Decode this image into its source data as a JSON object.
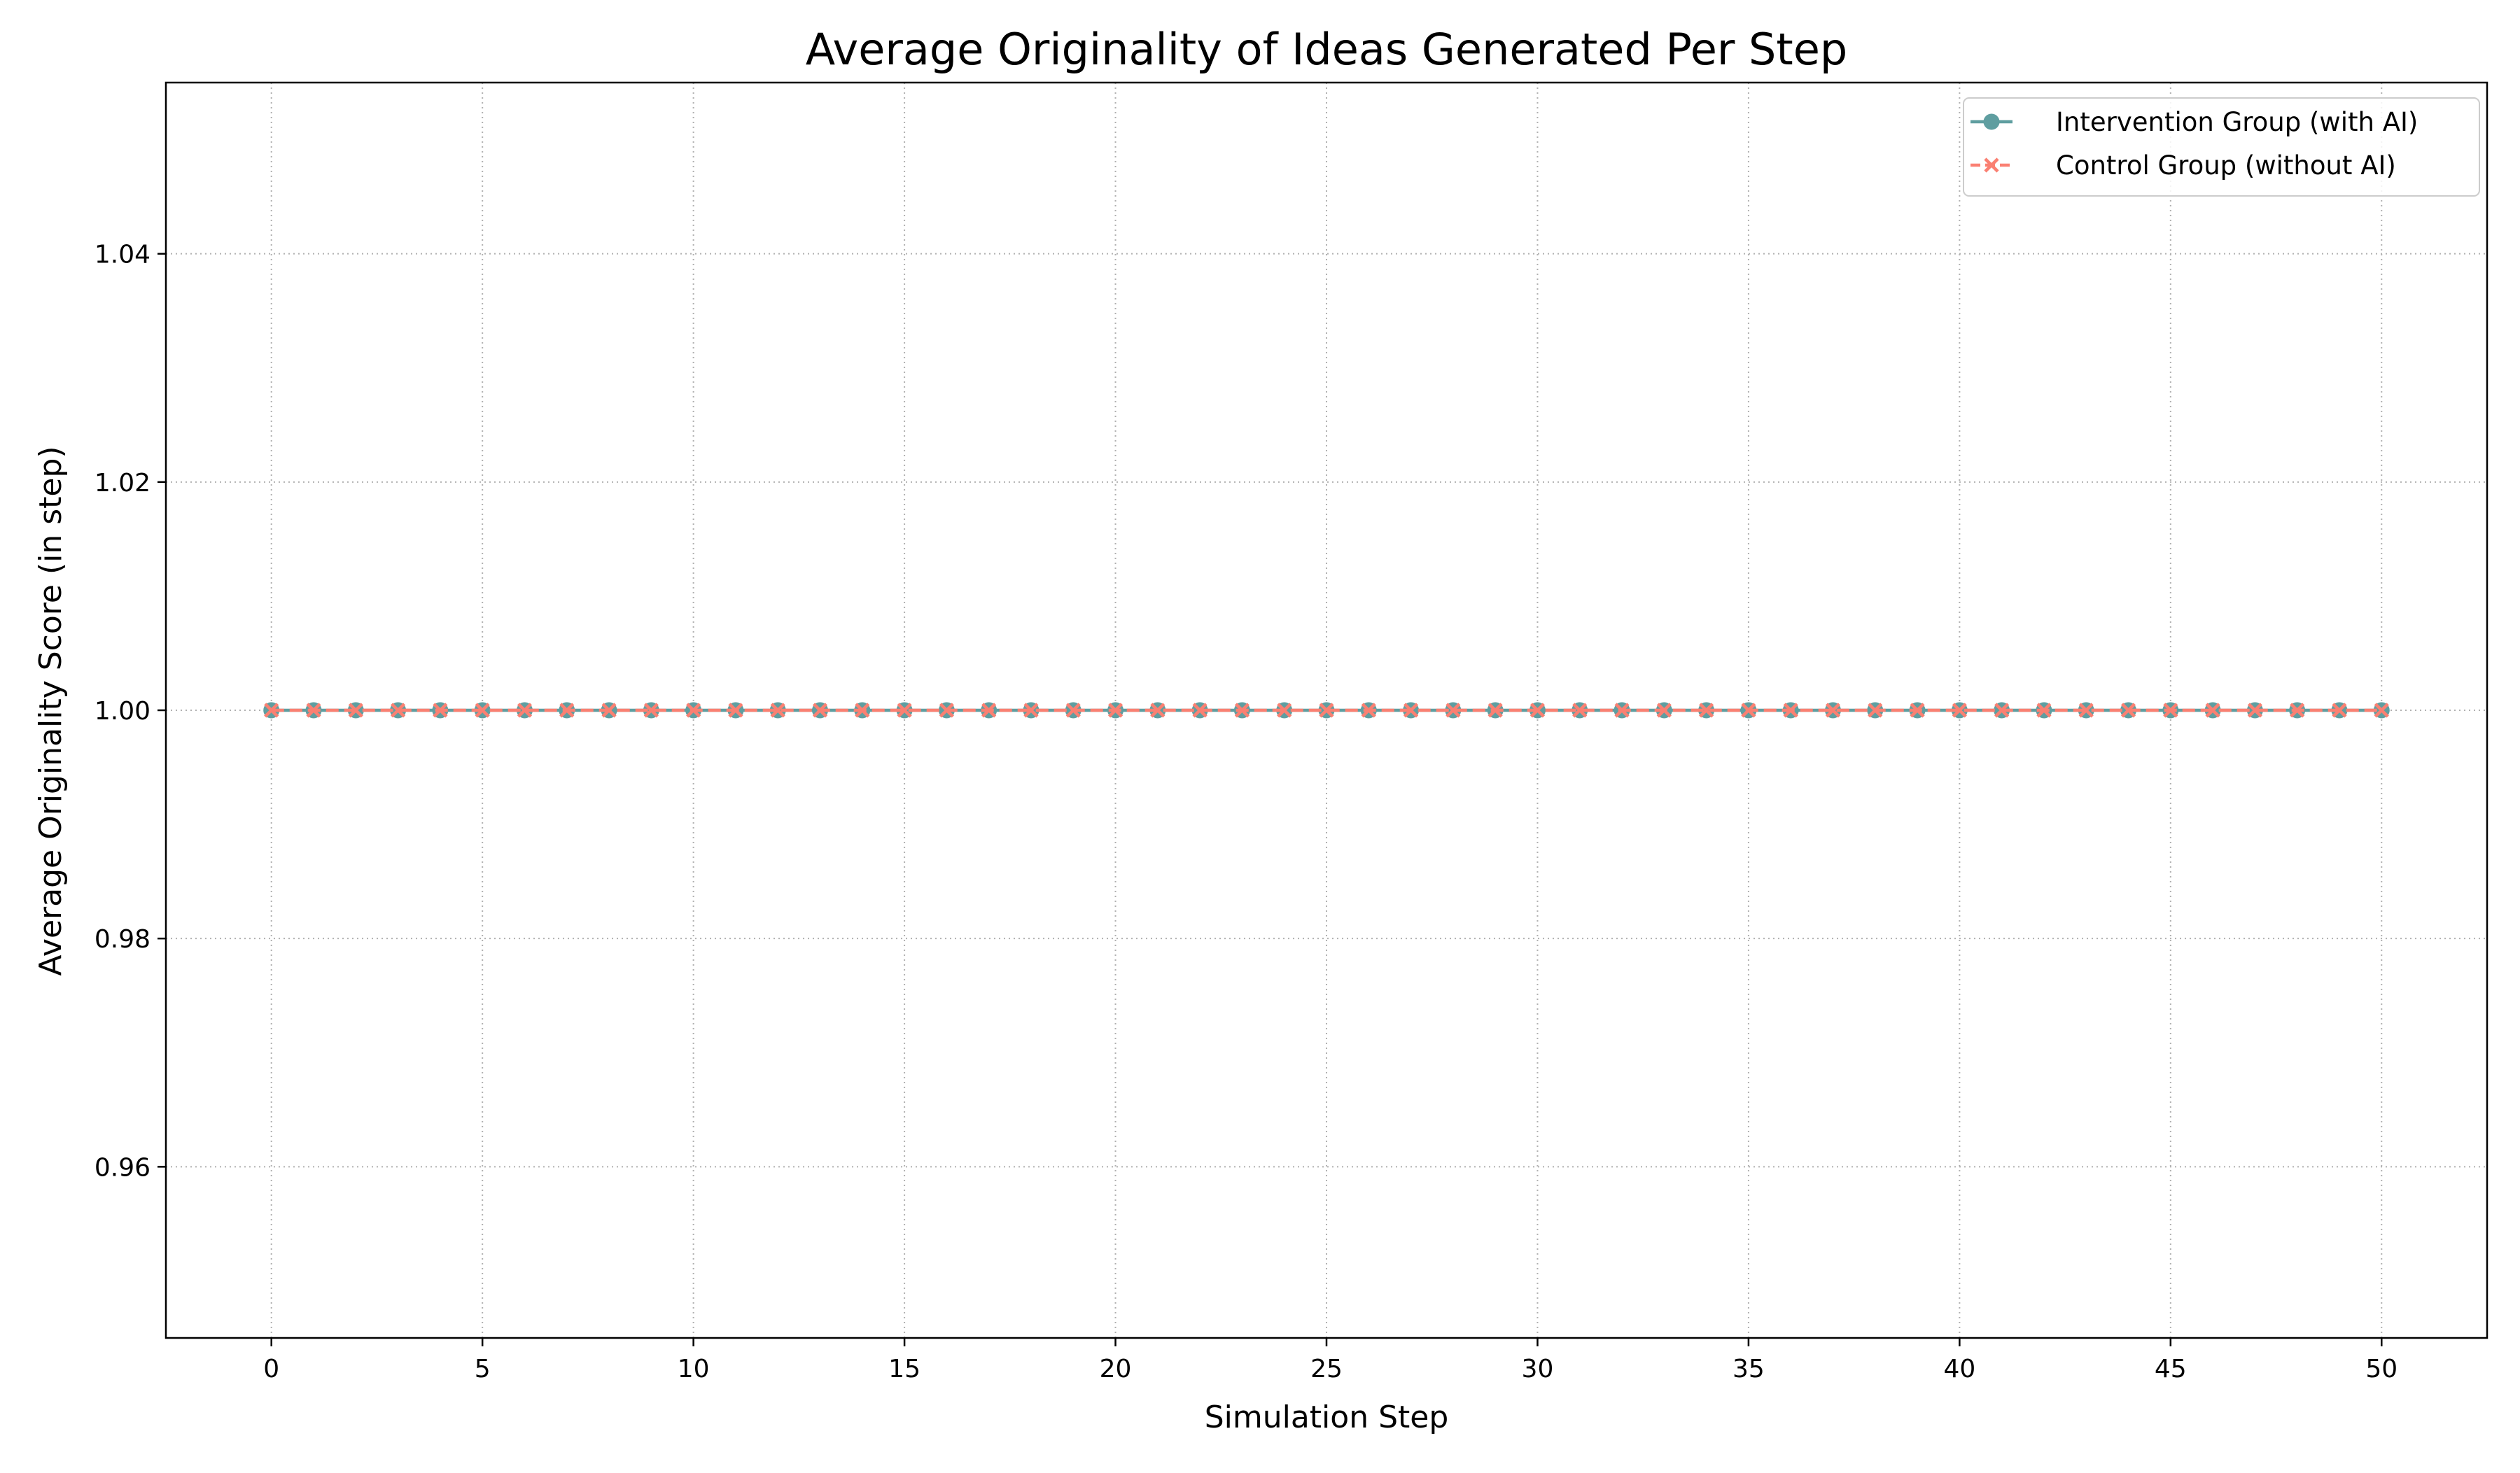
{
  "chart_data": {
    "type": "line",
    "title": "Average Originality of Ideas Generated Per Step",
    "xlabel": "Simulation Step",
    "ylabel": "Average Originality Score (in step)",
    "xlim": [
      -2.5,
      52.5
    ],
    "ylim": [
      0.945,
      1.055
    ],
    "xticks": [
      0,
      5,
      10,
      15,
      20,
      25,
      30,
      35,
      40,
      45,
      50
    ],
    "yticks": [
      0.96,
      0.98,
      1.0,
      1.02,
      1.04
    ],
    "ytick_labels": [
      "0.96",
      "0.98",
      "1.00",
      "1.02",
      "1.04"
    ],
    "grid": true,
    "grid_style": "dotted",
    "legend_position": "top-right",
    "x": [
      0,
      1,
      2,
      3,
      4,
      5,
      6,
      7,
      8,
      9,
      10,
      11,
      12,
      13,
      14,
      15,
      16,
      17,
      18,
      19,
      20,
      21,
      22,
      23,
      24,
      25,
      26,
      27,
      28,
      29,
      30,
      31,
      32,
      33,
      34,
      35,
      36,
      37,
      38,
      39,
      40,
      41,
      42,
      43,
      44,
      45,
      46,
      47,
      48,
      49,
      50
    ],
    "series": [
      {
        "name": "Intervention Group (with AI)",
        "color": "#5f9ea0",
        "marker": "circle",
        "line_style": "solid",
        "values": [
          1,
          1,
          1,
          1,
          1,
          1,
          1,
          1,
          1,
          1,
          1,
          1,
          1,
          1,
          1,
          1,
          1,
          1,
          1,
          1,
          1,
          1,
          1,
          1,
          1,
          1,
          1,
          1,
          1,
          1,
          1,
          1,
          1,
          1,
          1,
          1,
          1,
          1,
          1,
          1,
          1,
          1,
          1,
          1,
          1,
          1,
          1,
          1,
          1,
          1,
          1
        ]
      },
      {
        "name": "Control Group (without AI)",
        "color": "#fa8072",
        "marker": "x",
        "line_style": "dashed",
        "values": [
          1,
          1,
          1,
          1,
          1,
          1,
          1,
          1,
          1,
          1,
          1,
          1,
          1,
          1,
          1,
          1,
          1,
          1,
          1,
          1,
          1,
          1,
          1,
          1,
          1,
          1,
          1,
          1,
          1,
          1,
          1,
          1,
          1,
          1,
          1,
          1,
          1,
          1,
          1,
          1,
          1,
          1,
          1,
          1,
          1,
          1,
          1,
          1,
          1,
          1,
          1
        ]
      }
    ]
  }
}
